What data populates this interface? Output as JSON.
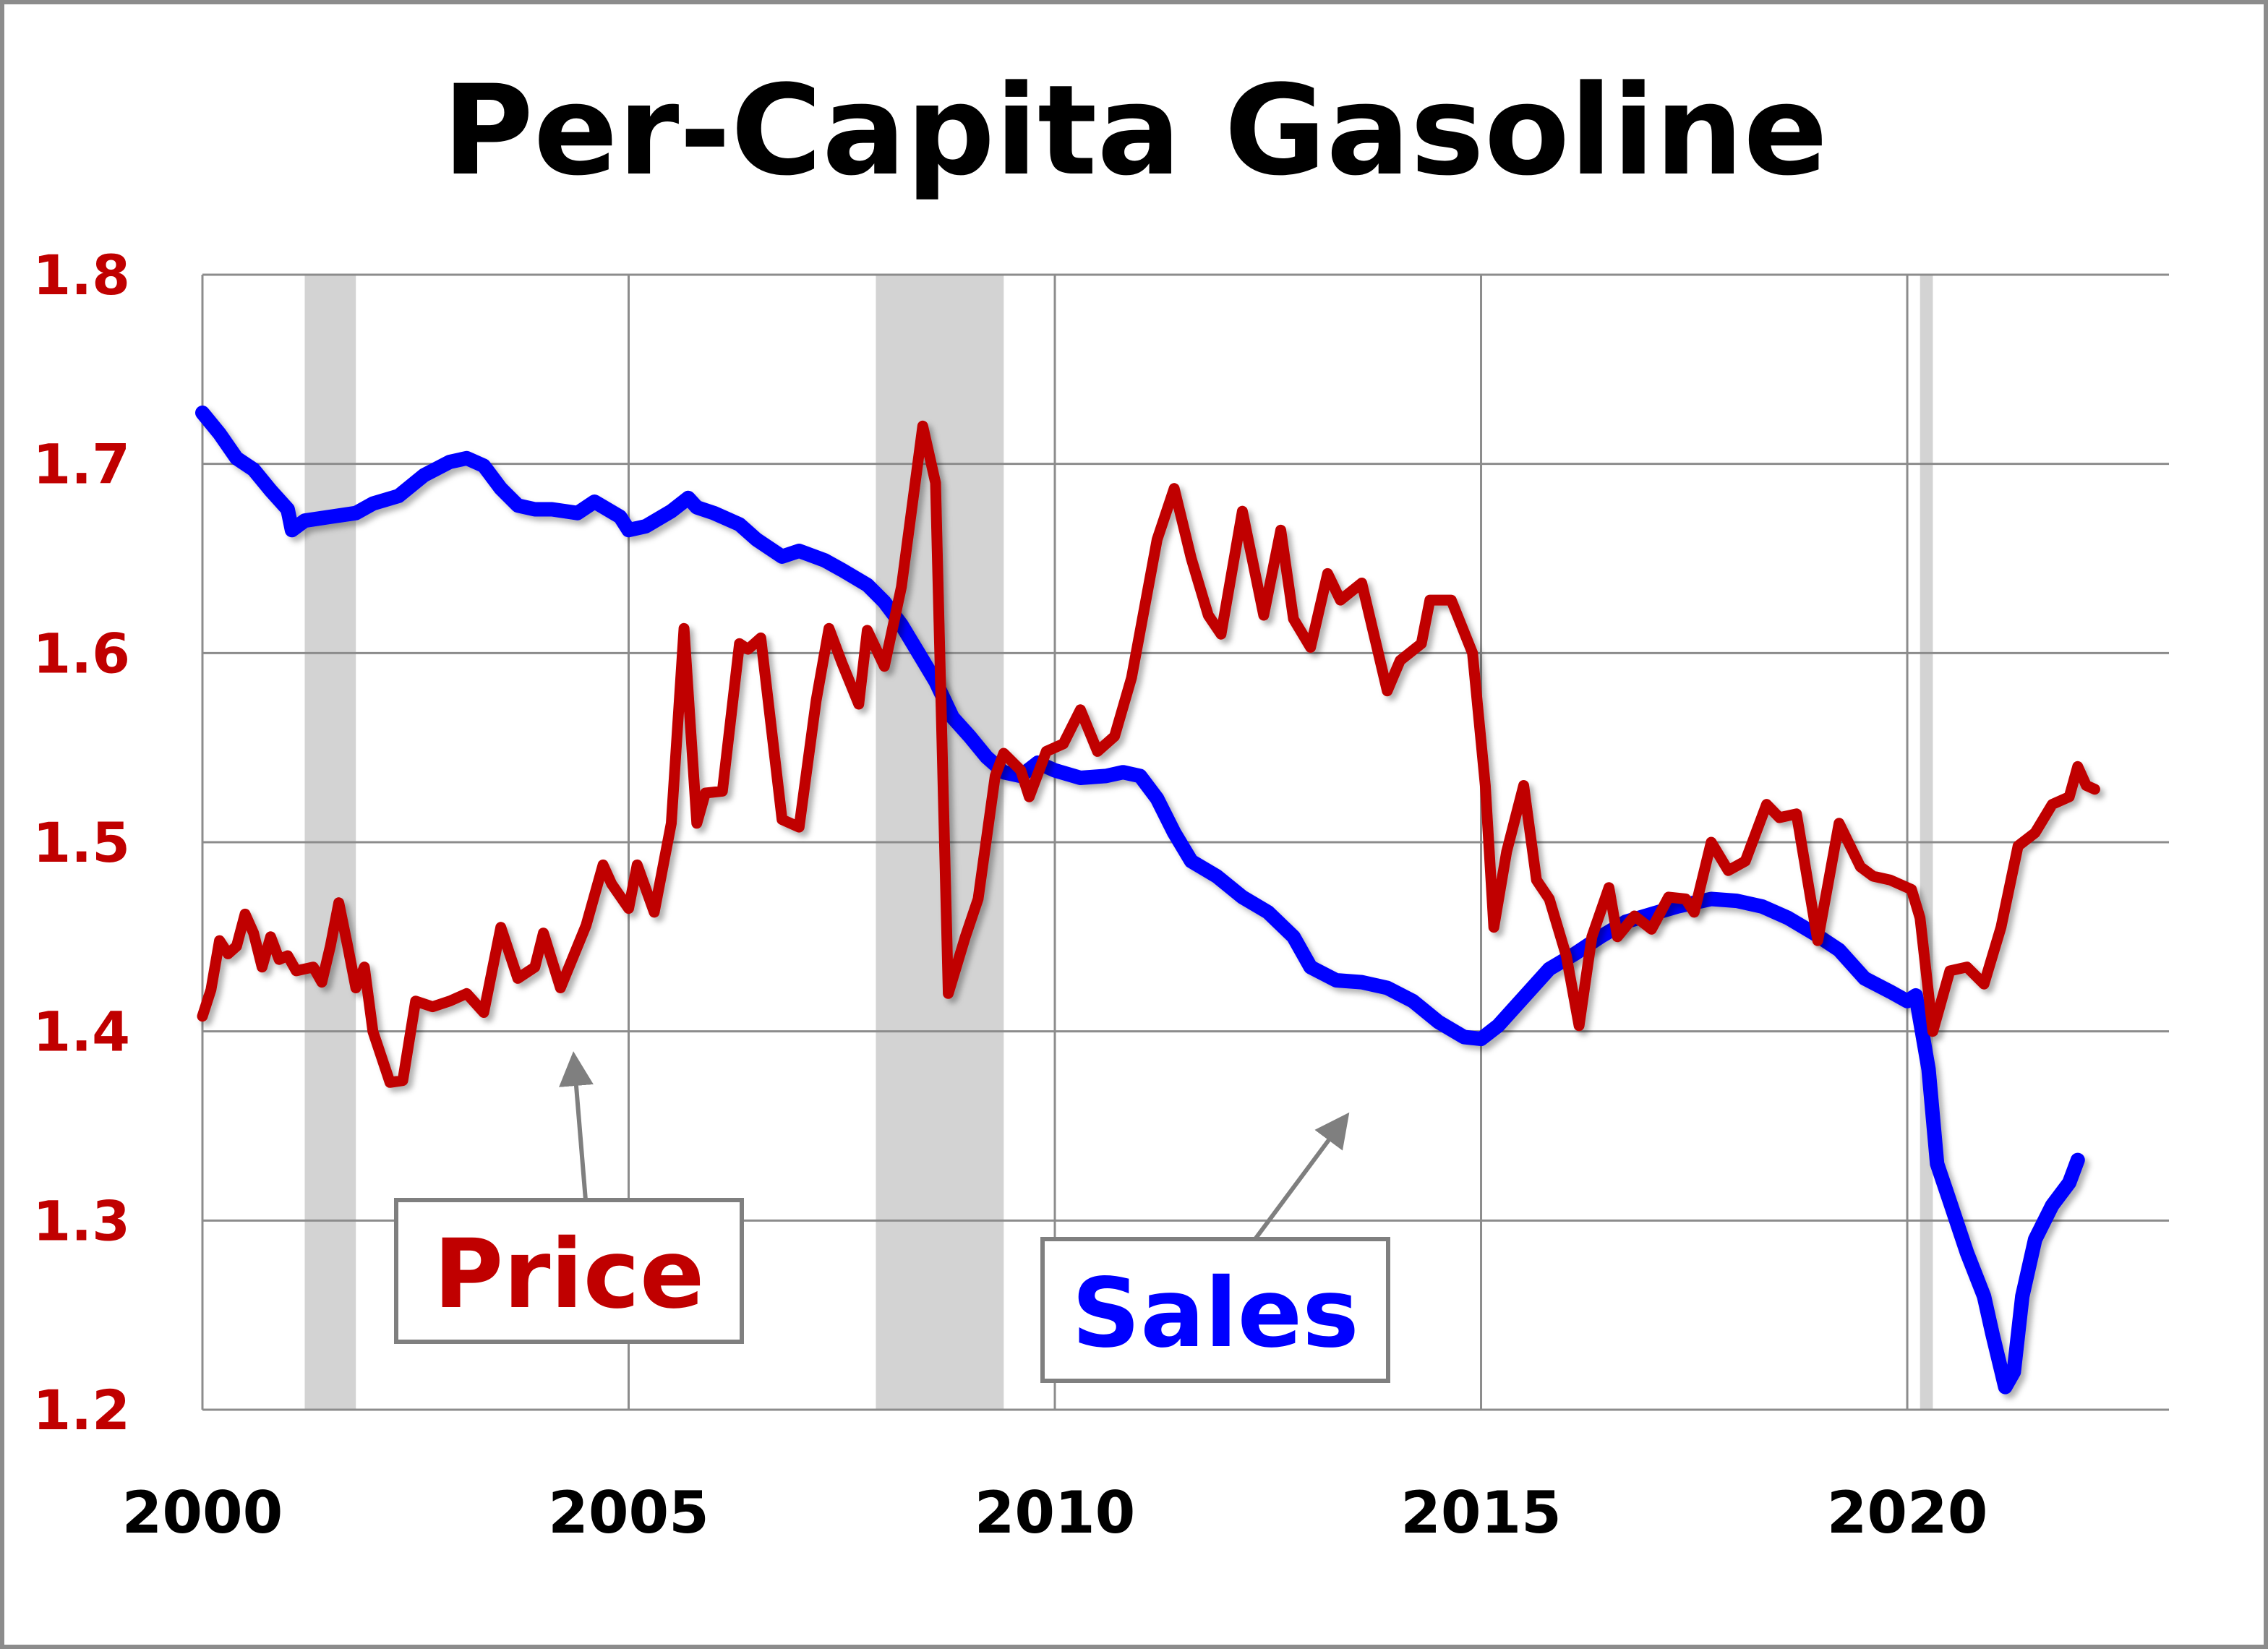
{
  "chart_data": {
    "type": "line",
    "title": "Per-Capita Gasoline",
    "xlabel": "",
    "ylabel": "",
    "xlim": [
      2000,
      2023.07
    ],
    "ylim": [
      1.2,
      1.8
    ],
    "x_ticks": [
      "2000",
      "2005",
      "2010",
      "2015",
      "2020"
    ],
    "x_tick_values": [
      2000,
      2005,
      2010,
      2015,
      2020
    ],
    "y_ticks": [
      "1.2",
      "1.3",
      "1.4",
      "1.5",
      "1.6",
      "1.7",
      "1.8"
    ],
    "y_tick_values": [
      1.2,
      1.3,
      1.4,
      1.5,
      1.6,
      1.7,
      1.8
    ],
    "grid": true,
    "recessions": [
      [
        2001.2,
        2001.8
      ],
      [
        2007.9,
        2009.4
      ],
      [
        2020.15,
        2020.3
      ]
    ],
    "annotations": [
      {
        "text": "Price",
        "color": "#c00000",
        "points_to": [
          2004.4,
          1.385
        ]
      },
      {
        "text": "Sales",
        "color": "#0000ff",
        "points_to": [
          2013.4,
          1.335
        ]
      }
    ],
    "series": [
      {
        "name": "Sales",
        "color": "#0000ff",
        "points": [
          [
            2000.0,
            1.727
          ],
          [
            2000.2,
            1.716
          ],
          [
            2000.4,
            1.703
          ],
          [
            2000.6,
            1.697
          ],
          [
            2000.8,
            1.686
          ],
          [
            2001.0,
            1.676
          ],
          [
            2001.05,
            1.665
          ],
          [
            2001.2,
            1.67
          ],
          [
            2001.5,
            1.672
          ],
          [
            2001.8,
            1.674
          ],
          [
            2002.0,
            1.679
          ],
          [
            2002.3,
            1.683
          ],
          [
            2002.6,
            1.694
          ],
          [
            2002.9,
            1.701
          ],
          [
            2003.1,
            1.703
          ],
          [
            2003.3,
            1.699
          ],
          [
            2003.5,
            1.687
          ],
          [
            2003.7,
            1.678
          ],
          [
            2003.9,
            1.676
          ],
          [
            2004.1,
            1.676
          ],
          [
            2004.4,
            1.674
          ],
          [
            2004.6,
            1.68
          ],
          [
            2004.9,
            1.672
          ],
          [
            2005.0,
            1.665
          ],
          [
            2005.2,
            1.667
          ],
          [
            2005.5,
            1.675
          ],
          [
            2005.7,
            1.682
          ],
          [
            2005.8,
            1.677
          ],
          [
            2006.0,
            1.674
          ],
          [
            2006.3,
            1.668
          ],
          [
            2006.5,
            1.66
          ],
          [
            2006.8,
            1.651
          ],
          [
            2007.0,
            1.654
          ],
          [
            2007.3,
            1.649
          ],
          [
            2007.5,
            1.644
          ],
          [
            2007.8,
            1.636
          ],
          [
            2008.0,
            1.627
          ],
          [
            2008.2,
            1.615
          ],
          [
            2008.4,
            1.6
          ],
          [
            2008.6,
            1.585
          ],
          [
            2008.8,
            1.566
          ],
          [
            2009.0,
            1.556
          ],
          [
            2009.2,
            1.545
          ],
          [
            2009.4,
            1.537
          ],
          [
            2009.6,
            1.535
          ],
          [
            2009.8,
            1.542
          ],
          [
            2010.0,
            1.538
          ],
          [
            2010.3,
            1.534
          ],
          [
            2010.6,
            1.535
          ],
          [
            2010.8,
            1.537
          ],
          [
            2011.0,
            1.535
          ],
          [
            2011.2,
            1.523
          ],
          [
            2011.4,
            1.505
          ],
          [
            2011.6,
            1.49
          ],
          [
            2011.9,
            1.482
          ],
          [
            2012.2,
            1.471
          ],
          [
            2012.5,
            1.463
          ],
          [
            2012.8,
            1.45
          ],
          [
            2013.0,
            1.434
          ],
          [
            2013.3,
            1.427
          ],
          [
            2013.6,
            1.426
          ],
          [
            2013.9,
            1.423
          ],
          [
            2014.2,
            1.416
          ],
          [
            2014.5,
            1.405
          ],
          [
            2014.8,
            1.397
          ],
          [
            2015.0,
            1.396
          ],
          [
            2015.2,
            1.403
          ],
          [
            2015.5,
            1.418
          ],
          [
            2015.8,
            1.433
          ],
          [
            2016.1,
            1.441
          ],
          [
            2016.4,
            1.45
          ],
          [
            2016.7,
            1.458
          ],
          [
            2017.0,
            1.462
          ],
          [
            2017.3,
            1.466
          ],
          [
            2017.7,
            1.47
          ],
          [
            2018.0,
            1.469
          ],
          [
            2018.3,
            1.466
          ],
          [
            2018.6,
            1.46
          ],
          [
            2018.9,
            1.452
          ],
          [
            2019.2,
            1.443
          ],
          [
            2019.5,
            1.428
          ],
          [
            2019.8,
            1.421
          ],
          [
            2020.0,
            1.416
          ],
          [
            2020.1,
            1.419
          ],
          [
            2020.25,
            1.38
          ],
          [
            2020.35,
            1.33
          ],
          [
            2020.5,
            1.31
          ],
          [
            2020.7,
            1.283
          ],
          [
            2020.9,
            1.26
          ],
          [
            2021.0,
            1.24
          ],
          [
            2021.15,
            1.212
          ],
          [
            2021.25,
            1.22
          ],
          [
            2021.35,
            1.26
          ],
          [
            2021.5,
            1.29
          ],
          [
            2021.7,
            1.308
          ],
          [
            2021.9,
            1.32
          ],
          [
            2022.0,
            1.332
          ]
        ]
      },
      {
        "name": "Price",
        "color": "#c00000",
        "points": [
          [
            2000.0,
            1.408
          ],
          [
            2000.1,
            1.422
          ],
          [
            2000.2,
            1.448
          ],
          [
            2000.3,
            1.441
          ],
          [
            2000.4,
            1.445
          ],
          [
            2000.5,
            1.462
          ],
          [
            2000.6,
            1.452
          ],
          [
            2000.7,
            1.434
          ],
          [
            2000.8,
            1.45
          ],
          [
            2000.9,
            1.438
          ],
          [
            2001.0,
            1.44
          ],
          [
            2001.1,
            1.432
          ],
          [
            2001.3,
            1.434
          ],
          [
            2001.4,
            1.426
          ],
          [
            2001.5,
            1.445
          ],
          [
            2001.6,
            1.468
          ],
          [
            2001.7,
            1.446
          ],
          [
            2001.8,
            1.423
          ],
          [
            2001.9,
            1.434
          ],
          [
            2002.0,
            1.4
          ],
          [
            2002.2,
            1.373
          ],
          [
            2002.35,
            1.374
          ],
          [
            2002.5,
            1.416
          ],
          [
            2002.7,
            1.413
          ],
          [
            2002.9,
            1.416
          ],
          [
            2003.1,
            1.42
          ],
          [
            2003.3,
            1.41
          ],
          [
            2003.5,
            1.455
          ],
          [
            2003.7,
            1.428
          ],
          [
            2003.9,
            1.434
          ],
          [
            2004.0,
            1.452
          ],
          [
            2004.2,
            1.423
          ],
          [
            2004.5,
            1.456
          ],
          [
            2004.7,
            1.488
          ],
          [
            2004.8,
            1.478
          ],
          [
            2005.0,
            1.465
          ],
          [
            2005.1,
            1.488
          ],
          [
            2005.3,
            1.463
          ],
          [
            2005.5,
            1.51
          ],
          [
            2005.65,
            1.613
          ],
          [
            2005.8,
            1.51
          ],
          [
            2005.9,
            1.526
          ],
          [
            2006.1,
            1.527
          ],
          [
            2006.3,
            1.605
          ],
          [
            2006.4,
            1.602
          ],
          [
            2006.55,
            1.608
          ],
          [
            2006.8,
            1.512
          ],
          [
            2007.0,
            1.508
          ],
          [
            2007.2,
            1.575
          ],
          [
            2007.35,
            1.613
          ],
          [
            2007.5,
            1.595
          ],
          [
            2007.7,
            1.573
          ],
          [
            2007.8,
            1.612
          ],
          [
            2008.0,
            1.593
          ],
          [
            2008.2,
            1.635
          ],
          [
            2008.45,
            1.72
          ],
          [
            2008.6,
            1.69
          ],
          [
            2008.75,
            1.42
          ],
          [
            2008.95,
            1.45
          ],
          [
            2009.1,
            1.47
          ],
          [
            2009.3,
            1.535
          ],
          [
            2009.4,
            1.547
          ],
          [
            2009.6,
            1.538
          ],
          [
            2009.7,
            1.524
          ],
          [
            2009.9,
            1.548
          ],
          [
            2010.1,
            1.552
          ],
          [
            2010.3,
            1.57
          ],
          [
            2010.5,
            1.548
          ],
          [
            2010.7,
            1.556
          ],
          [
            2010.9,
            1.587
          ],
          [
            2011.2,
            1.66
          ],
          [
            2011.4,
            1.687
          ],
          [
            2011.6,
            1.65
          ],
          [
            2011.8,
            1.62
          ],
          [
            2011.95,
            1.61
          ],
          [
            2012.2,
            1.675
          ],
          [
            2012.45,
            1.62
          ],
          [
            2012.65,
            1.665
          ],
          [
            2012.8,
            1.618
          ],
          [
            2013.0,
            1.603
          ],
          [
            2013.2,
            1.642
          ],
          [
            2013.35,
            1.628
          ],
          [
            2013.6,
            1.637
          ],
          [
            2013.9,
            1.58
          ],
          [
            2014.05,
            1.596
          ],
          [
            2014.3,
            1.605
          ],
          [
            2014.4,
            1.628
          ],
          [
            2014.65,
            1.628
          ],
          [
            2014.9,
            1.6
          ],
          [
            2015.05,
            1.53
          ],
          [
            2015.15,
            1.455
          ],
          [
            2015.3,
            1.495
          ],
          [
            2015.5,
            1.53
          ],
          [
            2015.65,
            1.48
          ],
          [
            2015.8,
            1.47
          ],
          [
            2016.0,
            1.44
          ],
          [
            2016.15,
            1.403
          ],
          [
            2016.3,
            1.45
          ],
          [
            2016.5,
            1.476
          ],
          [
            2016.6,
            1.45
          ],
          [
            2016.8,
            1.461
          ],
          [
            2017.0,
            1.454
          ],
          [
            2017.2,
            1.471
          ],
          [
            2017.4,
            1.47
          ],
          [
            2017.5,
            1.463
          ],
          [
            2017.7,
            1.5
          ],
          [
            2017.9,
            1.485
          ],
          [
            2018.1,
            1.49
          ],
          [
            2018.35,
            1.52
          ],
          [
            2018.5,
            1.513
          ],
          [
            2018.7,
            1.515
          ],
          [
            2018.95,
            1.448
          ],
          [
            2019.2,
            1.51
          ],
          [
            2019.45,
            1.487
          ],
          [
            2019.6,
            1.482
          ],
          [
            2019.8,
            1.48
          ],
          [
            2020.05,
            1.475
          ],
          [
            2020.15,
            1.46
          ],
          [
            2020.3,
            1.4
          ],
          [
            2020.5,
            1.432
          ],
          [
            2020.7,
            1.434
          ],
          [
            2020.9,
            1.425
          ],
          [
            2021.1,
            1.455
          ],
          [
            2021.3,
            1.498
          ],
          [
            2021.5,
            1.505
          ],
          [
            2021.7,
            1.52
          ],
          [
            2021.9,
            1.524
          ],
          [
            2022.0,
            1.54
          ],
          [
            2022.1,
            1.53
          ],
          [
            2022.2,
            1.528
          ]
        ]
      }
    ]
  }
}
